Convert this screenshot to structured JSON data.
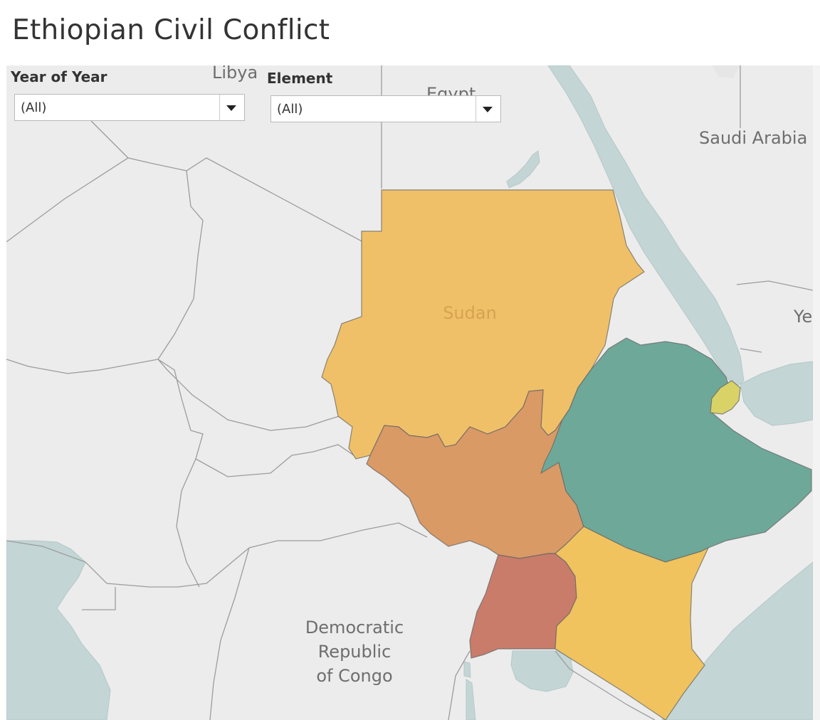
{
  "title": "Ethiopian Civil Conflict",
  "filters": {
    "year": {
      "label": "Year of Year",
      "value": "(All)"
    },
    "element": {
      "label": "Element",
      "value": "(All)"
    }
  },
  "map": {
    "labels": {
      "libya": "Libya",
      "egypt": "Egypt",
      "saudi": "Saudi Arabia",
      "yemen": "Ye",
      "sudan": "Sudan",
      "drc_1": "Democratic",
      "drc_2": "Republic",
      "drc_3": "of Congo"
    },
    "colors": {
      "land": "#ececec",
      "water": "#c3d5d5",
      "border": "#9a9a9a",
      "sudan": "#f0c068",
      "south_sudan": "#d99a66",
      "ethiopia": "#6ea898",
      "uganda": "#c97c6a",
      "kenya": "#f0c35f",
      "djibouti": "#d9d266"
    },
    "highlighted_countries": [
      "Sudan",
      "South Sudan",
      "Ethiopia",
      "Uganda",
      "Kenya",
      "Djibouti"
    ]
  }
}
